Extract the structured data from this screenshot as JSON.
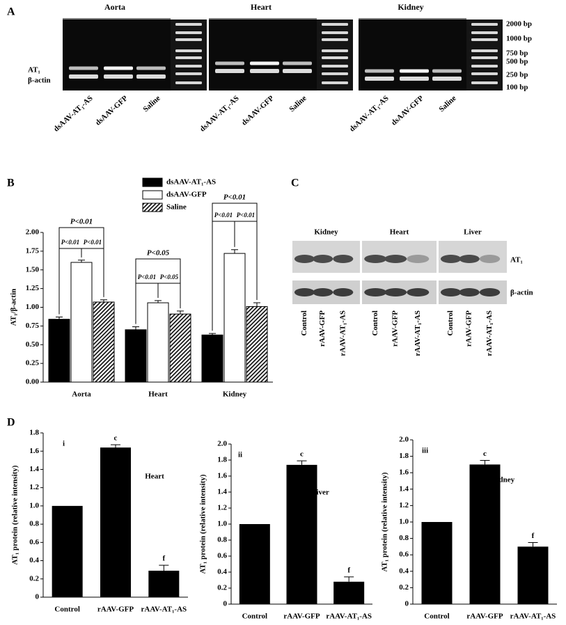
{
  "panel_labels": [
    "A",
    "B",
    "C",
    "D"
  ],
  "panel_a": {
    "gels": [
      {
        "tissue": "Aorta",
        "lanes": [
          "dsAAV-AT₁-AS",
          "dsAAV-GFP",
          "Saline"
        ]
      },
      {
        "tissue": "Heart",
        "lanes": [
          "dsAAV-AT₁-AS",
          "dsAAV-GFP",
          "Saline"
        ]
      },
      {
        "tissue": "Kidney",
        "lanes": [
          "dsAAV-AT₁-AS",
          "dsAAV-GFP",
          "Saline"
        ]
      }
    ],
    "band_labels": [
      "AT₁",
      "β-actin"
    ],
    "ladder": [
      "2000 bp",
      "1000 bp",
      "750 bp",
      "500 bp",
      "250 bp",
      "100 bp"
    ]
  },
  "panel_c": {
    "blots": [
      {
        "tissue": "Kidney",
        "lanes": [
          "Control",
          "rAAV-GFP",
          "rAAV-AT₁-AS"
        ]
      },
      {
        "tissue": "Heart",
        "lanes": [
          "Control",
          "rAAV-GFP",
          "rAAV-AT₁-AS"
        ]
      },
      {
        "tissue": "Liver",
        "lanes": [
          "Control",
          "rAAV-GFP",
          "rAAV-AT₁-AS"
        ]
      }
    ],
    "band_labels": [
      "AT₁",
      "β-actin"
    ]
  },
  "chart_data": [
    {
      "type": "bar",
      "ylabel": "AT₁/β-actin",
      "categories": [
        "Aorta",
        "Heart",
        "Kidney"
      ],
      "series": [
        {
          "name": "dsAAV-AT₁-AS",
          "color": "#000000",
          "values": [
            0.84,
            0.7,
            0.63
          ],
          "errors": [
            0.03,
            0.04,
            0.02
          ]
        },
        {
          "name": "dsAAV-GFP",
          "color": "#ffffff",
          "values": [
            1.6,
            1.06,
            1.72
          ],
          "errors": [
            0.03,
            0.03,
            0.05
          ]
        },
        {
          "name": "Saline",
          "color": "#000000",
          "pattern": "hatch",
          "values": [
            1.07,
            0.91,
            1.01
          ],
          "errors": [
            0.03,
            0.04,
            0.05
          ]
        }
      ],
      "ylim": [
        0,
        2
      ],
      "yticks": [
        {
          "value": 0,
          "label": "0.00"
        },
        0.25,
        {
          "value": 0.5,
          "label": "0.50"
        },
        0.75,
        {
          "value": 1,
          "label": "1.00"
        },
        1.25,
        {
          "value": 1.5,
          "label": "1.50"
        },
        1.75,
        {
          "value": 2,
          "label": "2.00"
        }
      ],
      "annotations": [
        "P<0.01",
        "P<0.01",
        "P<0.01",
        "P<0.05",
        "P<0.01",
        "P<0.05",
        "P<0.01",
        "P<0.01",
        "P<0.01"
      ]
    },
    {
      "type": "bar",
      "title": "i",
      "annotation": "Heart",
      "ylabel": "AT₁ protein (relative intensity)",
      "categories": [
        "Control",
        "rAAV-GFP",
        "rAAV-AT₁-AS"
      ],
      "values": [
        1.0,
        1.64,
        0.29
      ],
      "errors": [
        null,
        0.03,
        0.06
      ],
      "bar_labels": [
        null,
        "c",
        "f"
      ],
      "color": "#000000",
      "ylim": [
        0,
        1.8
      ],
      "yticks": [
        0,
        0.2,
        0.4,
        0.6,
        0.8,
        {
          "value": 1,
          "label": "1.0"
        },
        1.2,
        1.4,
        1.6,
        1.8
      ]
    },
    {
      "type": "bar",
      "title": "ii",
      "annotation": "Liver",
      "ylabel": "AT₁ protein (relative intensity)",
      "categories": [
        "Control",
        "rAAV-GFP",
        "rAAV-AT₁-AS"
      ],
      "values": [
        1.0,
        1.74,
        0.28
      ],
      "errors": [
        null,
        0.05,
        0.06
      ],
      "bar_labels": [
        null,
        "c",
        "f"
      ],
      "color": "#000000",
      "ylim": [
        0,
        2
      ],
      "yticks": [
        0,
        0.2,
        0.4,
        0.6,
        0.8,
        {
          "value": 1,
          "label": "1.0"
        },
        1.2,
        1.4,
        1.6,
        1.8,
        {
          "value": 2,
          "label": "2.0"
        }
      ]
    },
    {
      "type": "bar",
      "title": "iii",
      "annotation": "Kidney",
      "ylabel": "AT₁ protein (relative intensity)",
      "categories": [
        "Control",
        "rAAV-GFP",
        "rAAV-AT₁-AS"
      ],
      "values": [
        1.0,
        1.7,
        0.7
      ],
      "errors": [
        null,
        0.05,
        0.05
      ],
      "bar_labels": [
        null,
        "c",
        "f"
      ],
      "color": "#000000",
      "ylim": [
        0,
        2
      ],
      "yticks": [
        0,
        0.2,
        0.4,
        0.6,
        0.8,
        {
          "value": 1,
          "label": "1.0"
        },
        1.2,
        1.4,
        1.6,
        1.8,
        {
          "value": 2,
          "label": "2.0"
        }
      ]
    }
  ]
}
